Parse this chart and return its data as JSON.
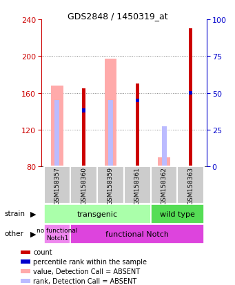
{
  "title": "GDS2848 / 1450319_at",
  "samples": [
    "GSM158357",
    "GSM158360",
    "GSM158359",
    "GSM158361",
    "GSM158362",
    "GSM158363"
  ],
  "ylim": [
    80,
    240
  ],
  "ylim_right": [
    0,
    100
  ],
  "yticks_left": [
    80,
    120,
    160,
    200,
    240
  ],
  "yticks_right": [
    0,
    25,
    50,
    75,
    100
  ],
  "count_values": [
    null,
    165,
    null,
    170,
    null,
    230
  ],
  "rank_values": [
    null,
    141,
    null,
    152,
    null,
    160
  ],
  "value_absent": [
    168,
    null,
    197,
    null,
    90,
    null
  ],
  "rank_absent": [
    152,
    null,
    152,
    null,
    124,
    null
  ],
  "colors": {
    "count": "#cc0000",
    "rank": "#0000cc",
    "value_absent": "#ffaaaa",
    "rank_absent": "#bbbbff",
    "strain_transgenic": "#aaffaa",
    "strain_wildtype": "#55dd55",
    "other_nofunc": "#ee88ee",
    "other_func": "#dd44dd",
    "xticklabel_bg": "#cccccc",
    "left_axis": "#cc0000",
    "right_axis": "#0000cc"
  },
  "strain_groups": {
    "transgenic": [
      0,
      1,
      2,
      3
    ],
    "wild_type": [
      4,
      5
    ]
  },
  "other_groups": {
    "no_functional": [
      0
    ],
    "functional": [
      1,
      2,
      3,
      4,
      5
    ]
  },
  "legend_items": [
    {
      "label": "count",
      "color": "#cc0000"
    },
    {
      "label": "percentile rank within the sample",
      "color": "#0000cc"
    },
    {
      "label": "value, Detection Call = ABSENT",
      "color": "#ffaaaa"
    },
    {
      "label": "rank, Detection Call = ABSENT",
      "color": "#bbbbff"
    }
  ]
}
